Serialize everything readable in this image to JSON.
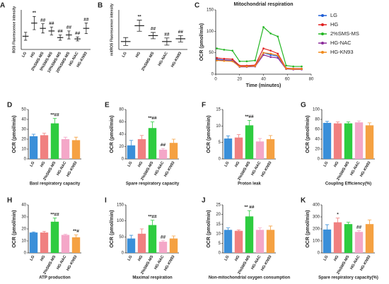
{
  "chart_data": [
    {
      "type": "dot",
      "label": "A",
      "ylabel": "ROS Fluorescence intensity",
      "categories": [
        "LG",
        "HG",
        "2%SMS-MS",
        "5%SMS-MS",
        "10%SMS-MS",
        "20%SMS-MS",
        "HG-NAC",
        "HG-KN93"
      ],
      "values": [
        1.0,
        2.0,
        1.6,
        1.4,
        0.9,
        1.1,
        0.8,
        1.6
      ],
      "errors": [
        0.3,
        0.5,
        0.35,
        0.3,
        0.2,
        0.3,
        0.15,
        0.4
      ],
      "annotations": [
        null,
        "**",
        "##",
        "##",
        "##",
        "##",
        "##",
        "##"
      ],
      "ylim": [
        0,
        3
      ],
      "color": "#222222"
    },
    {
      "type": "dot",
      "label": "B",
      "ylabel": "mitROS Fluorescence intensity",
      "categories": [
        "LG",
        "HG",
        "2%SMS-MS",
        "HG-NAC",
        "HG-KN93"
      ],
      "values": [
        20,
        60,
        35,
        20,
        27
      ],
      "errors": [
        10,
        14,
        8,
        9,
        8
      ],
      "annotations": [
        null,
        "**",
        "##",
        "##",
        "##"
      ],
      "ylim": [
        0,
        100
      ],
      "color": "#222222"
    },
    {
      "type": "line",
      "label": "C",
      "title": "Mitochondrial respiration",
      "xlabel": "Time (minutes)",
      "ylabel": "OCR (pmol/min)",
      "x": [
        1,
        7,
        14,
        20,
        26,
        33,
        40,
        46,
        52,
        59,
        65,
        72
      ],
      "series": [
        {
          "name": "LG",
          "color": "#1f5fd6",
          "values": [
            35,
            33,
            32,
            19,
            19,
            20,
            50,
            45,
            42,
            13,
            12,
            12
          ]
        },
        {
          "name": "HG",
          "color": "#e02020",
          "values": [
            38,
            36,
            35,
            20,
            20,
            21,
            60,
            55,
            48,
            14,
            13,
            13
          ]
        },
        {
          "name": "2%SMS-MS",
          "color": "#22b522",
          "values": [
            60,
            57,
            55,
            30,
            30,
            32,
            110,
            95,
            88,
            20,
            18,
            18
          ]
        },
        {
          "name": "HG-NAC",
          "color": "#8a2a9a",
          "values": [
            33,
            32,
            31,
            17,
            17,
            18,
            45,
            40,
            38,
            12,
            11,
            11
          ]
        },
        {
          "name": "HG-KN93",
          "color": "#f08a1c",
          "values": [
            32,
            31,
            30,
            18,
            18,
            19,
            50,
            48,
            44,
            13,
            12,
            12
          ]
        }
      ],
      "xlim": [
        0,
        80
      ],
      "xticks": [
        0,
        20,
        40,
        60,
        80
      ],
      "ylim": [
        0,
        150
      ],
      "yticks": [
        0,
        50,
        100,
        150
      ]
    },
    {
      "type": "bar",
      "label": "D",
      "xlabel": "Basl respiratory capacity",
      "ylabel": "OCR (pmol/min)",
      "categories": [
        "LG",
        "HG",
        "2%SMS-MS",
        "HG-NAC",
        "HG-KN93"
      ],
      "values": [
        23,
        24,
        36,
        20,
        19
      ],
      "errors": [
        2,
        2,
        5,
        2,
        3
      ],
      "annotations": [
        null,
        null,
        "**##",
        null,
        null
      ],
      "ylim": [
        0,
        50
      ],
      "yticks": [
        0,
        10,
        20,
        30,
        40,
        50
      ],
      "colors": [
        "#3a8fd9",
        "#f08080",
        "#2ecc40",
        "#f4a7c8",
        "#f5a142"
      ]
    },
    {
      "type": "bar",
      "label": "E",
      "xlabel": "Spare respiratory capacity",
      "ylabel": "OCR (pmol/min)",
      "categories": [
        "LG",
        "HG",
        "2%SMS-MS",
        "HG-NAC",
        "HG-KN93"
      ],
      "values": [
        22,
        32,
        50,
        15,
        26
      ],
      "errors": [
        8,
        6,
        10,
        2,
        6
      ],
      "annotations": [
        null,
        null,
        "**##",
        "##",
        null
      ],
      "ylim": [
        0,
        80
      ],
      "yticks": [
        0,
        20,
        40,
        60,
        80
      ],
      "colors": [
        "#3a8fd9",
        "#f08080",
        "#2ecc40",
        "#f4a7c8",
        "#f5a142"
      ]
    },
    {
      "type": "bar",
      "label": "F",
      "xlabel": "Proton leak",
      "ylabel": "OCR (pmol/min)",
      "categories": [
        "LG",
        "HG",
        "2%SMS-MS",
        "HG-NAC",
        "HG-KN93"
      ],
      "values": [
        6.2,
        6.5,
        10.2,
        5.3,
        6
      ],
      "errors": [
        0.8,
        0.9,
        1.5,
        0.9,
        1.1
      ],
      "annotations": [
        null,
        null,
        "**##",
        null,
        null
      ],
      "ylim": [
        0,
        15
      ],
      "yticks": [
        0,
        5,
        10,
        15
      ],
      "colors": [
        "#3a8fd9",
        "#f08080",
        "#2ecc40",
        "#f4a7c8",
        "#f5a142"
      ]
    },
    {
      "type": "bar",
      "label": "G",
      "xlabel": "Coupling Efficiency(%)",
      "ylabel": "OCR (pmol/min)",
      "categories": [
        "LG",
        "HG",
        "2%SMS-MS",
        "HG-NAC",
        "HG-KN93"
      ],
      "values": [
        73,
        72,
        72,
        74,
        68
      ],
      "errors": [
        3,
        3,
        3,
        3,
        5
      ],
      "annotations": [
        null,
        null,
        null,
        null,
        null
      ],
      "ylim": [
        0,
        100
      ],
      "yticks": [
        0,
        20,
        40,
        60,
        80,
        100
      ],
      "colors": [
        "#3a8fd9",
        "#f08080",
        "#2ecc40",
        "#f4a7c8",
        "#f5a142"
      ]
    },
    {
      "type": "bar",
      "label": "H",
      "xlabel": "ATP production",
      "ylabel": "OCR (pmol/min)",
      "categories": [
        "LG",
        "HG",
        "2%SMS-MS",
        "HG-NAC",
        "HG-KN93"
      ],
      "values": [
        17,
        17,
        26,
        15,
        13
      ],
      "errors": [
        0.5,
        1,
        3,
        0.5,
        2
      ],
      "annotations": [
        null,
        null,
        "**##",
        null,
        "**#"
      ],
      "ylim": [
        0,
        40
      ],
      "yticks": [
        0,
        10,
        20,
        30,
        40
      ],
      "colors": [
        "#3a8fd9",
        "#f08080",
        "#2ecc40",
        "#f4a7c8",
        "#f5a142"
      ]
    },
    {
      "type": "bar",
      "label": "I",
      "xlabel": "Maximal respiration",
      "ylabel": "OCR (pmol/min)",
      "categories": [
        "LG",
        "HG",
        "2%SMS-MS",
        "HG-NAC",
        "HG-KN93"
      ],
      "values": [
        45,
        60,
        87,
        35,
        45
      ],
      "errors": [
        10,
        15,
        15,
        3,
        8
      ],
      "annotations": [
        null,
        null,
        "**##",
        "##",
        null
      ],
      "ylim": [
        0,
        150
      ],
      "yticks": [
        0,
        50,
        100,
        150
      ],
      "colors": [
        "#3a8fd9",
        "#f08080",
        "#2ecc40",
        "#f4a7c8",
        "#f5a142"
      ]
    },
    {
      "type": "bar",
      "label": "J",
      "xlabel": "Non-mitochondrial oxygen consumption",
      "ylabel": "OCR (pmol/min)",
      "categories": [
        "LG",
        "HG",
        "2%SMS-MS",
        "HG-NAC",
        "HG-KN93"
      ],
      "values": [
        12,
        11.5,
        19,
        12,
        12
      ],
      "errors": [
        1,
        0.5,
        3,
        1,
        2
      ],
      "annotations": [
        null,
        null,
        "** ##",
        null,
        null
      ],
      "ylim": [
        0,
        25
      ],
      "yticks": [
        0,
        5,
        10,
        15,
        20,
        25
      ],
      "colors": [
        "#3a8fd9",
        "#f08080",
        "#2ecc40",
        "#f4a7c8",
        "#f5a142"
      ]
    },
    {
      "type": "bar",
      "label": "K",
      "xlabel": "Spare respiratory capacity(%)",
      "ylabel": "OCR (pmol/min)",
      "categories": [
        "LG",
        "HG",
        "2%SMS-MS",
        "HG-NAC",
        "HG-KN93"
      ],
      "values": [
        195,
        255,
        240,
        175,
        240
      ],
      "errors": [
        40,
        35,
        15,
        10,
        35
      ],
      "annotations": [
        null,
        "*",
        null,
        "##",
        null
      ],
      "ylim": [
        0,
        400
      ],
      "yticks": [
        0,
        100,
        200,
        300,
        400
      ],
      "colors": [
        "#3a8fd9",
        "#f08080",
        "#2ecc40",
        "#f4a7c8",
        "#f5a142"
      ]
    }
  ]
}
